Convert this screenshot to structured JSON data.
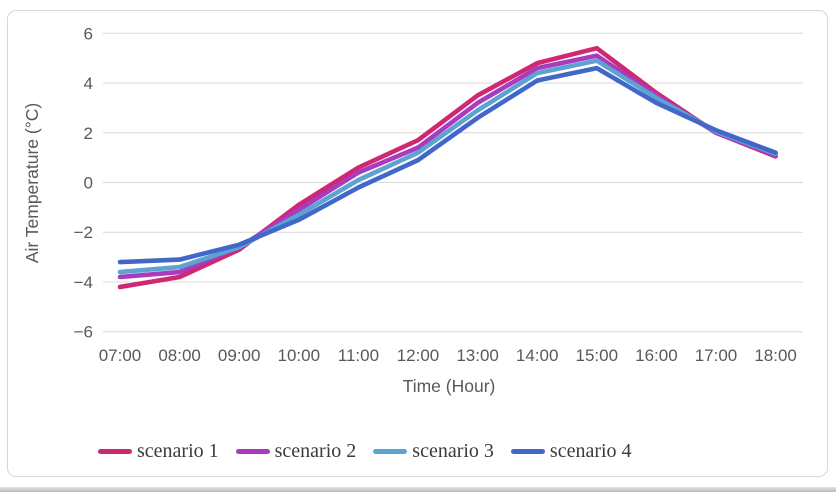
{
  "chart_data": {
    "type": "line",
    "title": "",
    "xlabel": "Time (Hour)",
    "ylabel": "Air Temperature (°C)",
    "categories": [
      "07:00",
      "08:00",
      "09:00",
      "10:00",
      "11:00",
      "12:00",
      "13:00",
      "14:00",
      "15:00",
      "16:00",
      "17:00",
      "18:00"
    ],
    "y_tick_labels": [
      "6",
      "4",
      "2",
      "0",
      "−2",
      "−4",
      "−6"
    ],
    "y_tick_values": [
      6,
      4,
      2,
      0,
      -2,
      -4,
      -6
    ],
    "ylim": [
      -6,
      6
    ],
    "grid": "horizontal-only",
    "legend_position": "bottom",
    "series": [
      {
        "name": "scenario 1",
        "color": "#cf2873",
        "values": [
          -4.2,
          -3.8,
          -2.7,
          -0.9,
          0.6,
          1.7,
          3.5,
          4.8,
          5.4,
          3.6,
          2.0,
          1.05
        ]
      },
      {
        "name": "scenario 2",
        "color": "#a83bbe",
        "values": [
          -3.8,
          -3.6,
          -2.6,
          -1.1,
          0.4,
          1.4,
          3.2,
          4.6,
          5.1,
          3.5,
          2.0,
          1.1
        ]
      },
      {
        "name": "scenario 3",
        "color": "#5ca3d2",
        "values": [
          -3.6,
          -3.4,
          -2.6,
          -1.3,
          0.1,
          1.2,
          2.9,
          4.4,
          4.9,
          3.4,
          2.05,
          1.15
        ]
      },
      {
        "name": "scenario 4",
        "color": "#4168c8",
        "values": [
          -3.2,
          -3.1,
          -2.5,
          -1.5,
          -0.2,
          0.9,
          2.6,
          4.1,
          4.6,
          3.2,
          2.1,
          1.2
        ]
      }
    ]
  }
}
